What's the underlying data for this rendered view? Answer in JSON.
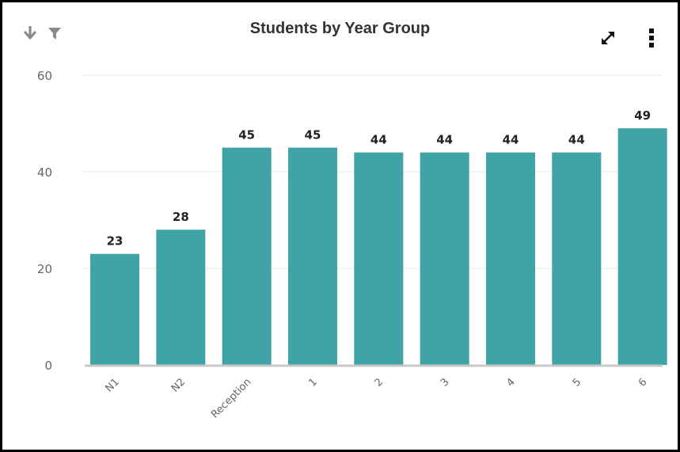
{
  "header": {
    "title": "Students by Year Group",
    "icons": [
      "sort-down-icon",
      "filter-icon",
      "expand-icon",
      "more-vertical-icon"
    ]
  },
  "colors": {
    "bar": "#40a3a5",
    "grid": "#d9f2d9",
    "baseline": "#c8c8c8",
    "tick_text": "#666666",
    "data_label": "#222222",
    "icon_muted": "#8a8a8a",
    "icon_dark": "#111111"
  },
  "chart_data": {
    "type": "bar",
    "title": "Students by Year Group",
    "categories": [
      "N1",
      "N2",
      "Reception",
      "1",
      "2",
      "3",
      "4",
      "5",
      "6"
    ],
    "values": [
      23,
      28,
      45,
      45,
      44,
      44,
      44,
      44,
      49
    ],
    "ylim": [
      0,
      60
    ],
    "yticks": [
      0,
      20,
      40,
      60
    ],
    "grid": true,
    "legend": "none"
  }
}
